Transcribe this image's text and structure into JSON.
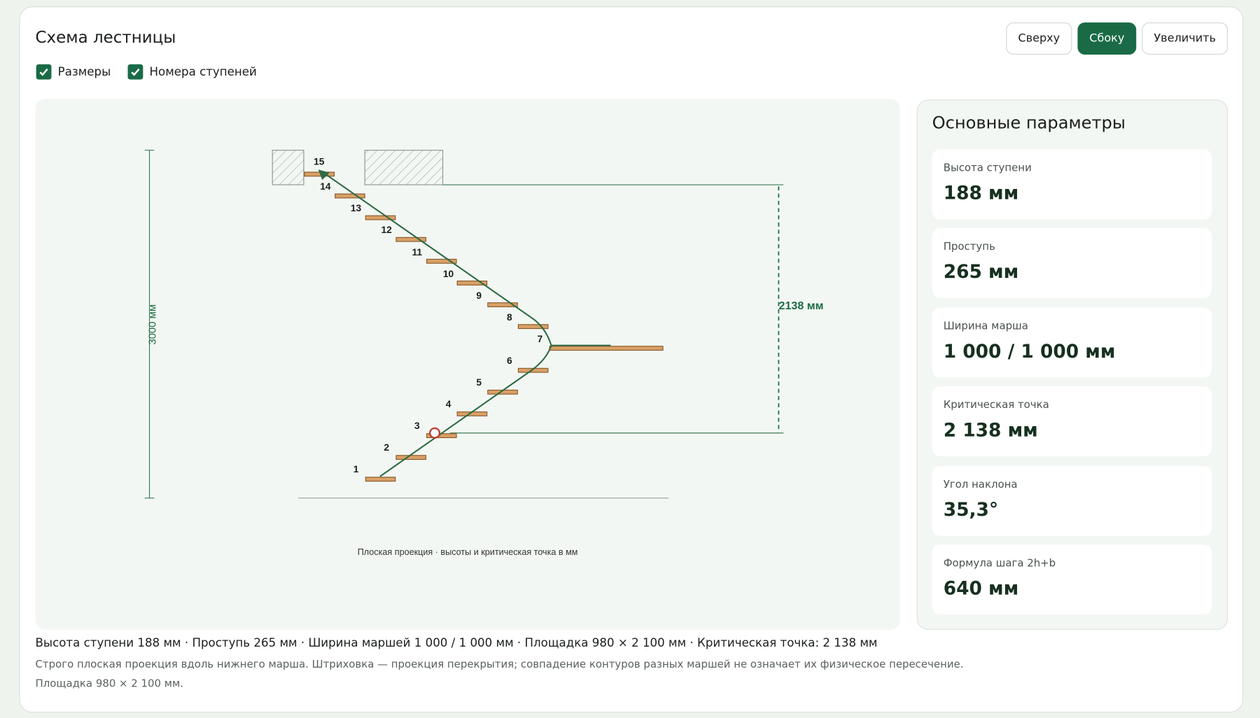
{
  "header": {
    "title": "Схема лестницы",
    "buttons": [
      "Сверху",
      "Сбоку",
      "Увеличить"
    ],
    "checkboxes": [
      "Размеры",
      "Номера ступеней"
    ]
  },
  "diagram": {
    "step_numbers": [
      1,
      2,
      3,
      4,
      5,
      6,
      7,
      8,
      9,
      10,
      11,
      12,
      13,
      14,
      15
    ],
    "total_height_label": "3000 мм",
    "critical_height_label": "2138 мм",
    "caption": "Плоская проекция · высоты и критическая точка в мм"
  },
  "parameters": {
    "title": "Основные параметры",
    "items": [
      {
        "label": "Высота ступени",
        "value": "188 мм"
      },
      {
        "label": "Проступь",
        "value": "265 мм"
      },
      {
        "label": "Ширина марша",
        "value": "1 000 / 1 000 мм"
      },
      {
        "label": "Критическая точка",
        "value": "2 138 мм"
      },
      {
        "label": "Угол наклона",
        "value": "35,3°"
      },
      {
        "label": "Формула шага 2h+b",
        "value": "640 мм"
      }
    ]
  },
  "footer": {
    "summary": "Высота ступени 188 мм · Проступь 265 мм · Ширина маршей 1 000 / 1 000 мм · Площадка 980 × 2 100 мм · Критическая точка: 2 138 мм",
    "note": "Строго плоская проекция вдоль нижнего марша. Штриховка — проекция перекрытия; совпадение контуров разных маршей не означает их физическое пересечение.",
    "landing": "Площадка 980 × 2 100 мм."
  }
}
